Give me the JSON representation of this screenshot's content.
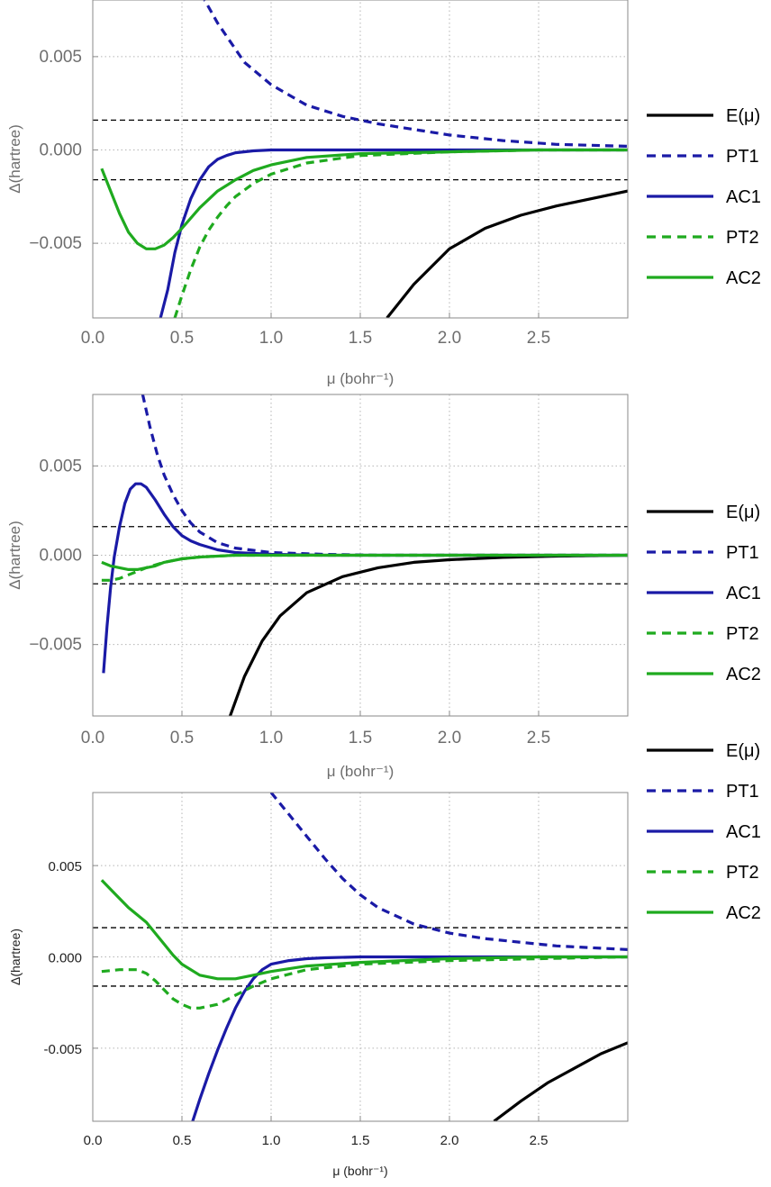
{
  "colors": {
    "E": "#000000",
    "PT1": "#1a1aa6",
    "AC1": "#1a1aa6",
    "PT2": "#1faa1f",
    "AC2": "#1faa1f",
    "threshold": "#000000",
    "grid": "#b5b5b5",
    "frame": "#8a8a8a"
  },
  "chart_data": [
    {
      "type": "line",
      "xlabel": "μ (bohr⁻¹)",
      "ylabel": "Δ(hartree)",
      "xlim": [
        0,
        3.0
      ],
      "ylim": [
        -0.009,
        0.009
      ],
      "xticks": [
        "0.0",
        "0.5",
        "1.0",
        "1.5",
        "2.0",
        "2.5"
      ],
      "yticks": [
        "0.005",
        "0.000",
        "−0.005"
      ],
      "grid": true,
      "legend_position": "right",
      "thresholds": [
        0.0016,
        -0.0016
      ],
      "series": [
        {
          "name": "E(μ)",
          "style": "solid",
          "color": "E",
          "x": [
            1.65,
            1.8,
            2.0,
            2.2,
            2.4,
            2.6,
            2.8,
            3.0
          ],
          "y": [
            -0.009,
            -0.0072,
            -0.0053,
            -0.0042,
            -0.0035,
            -0.003,
            -0.0026,
            -0.0022
          ]
        },
        {
          "name": "PT1",
          "style": "dashed",
          "color": "PT1",
          "x": [
            0.57,
            0.7,
            0.85,
            1.0,
            1.2,
            1.4,
            1.6,
            1.8,
            2.0,
            2.3,
            2.6,
            3.0
          ],
          "y": [
            0.009,
            0.0068,
            0.0047,
            0.0035,
            0.0024,
            0.0018,
            0.0014,
            0.0011,
            0.0008,
            0.0005,
            0.0003,
            0.0002
          ]
        },
        {
          "name": "AC1",
          "style": "solid",
          "color": "AC1",
          "x": [
            0.38,
            0.42,
            0.46,
            0.5,
            0.55,
            0.6,
            0.65,
            0.7,
            0.75,
            0.8,
            0.9,
            1.0,
            1.2,
            1.5,
            2.0,
            3.0
          ],
          "y": [
            -0.009,
            -0.0075,
            -0.0055,
            -0.004,
            -0.0026,
            -0.0016,
            -0.0009,
            -0.0005,
            -0.0003,
            -0.00015,
            -5e-05,
            0.0,
            0.0,
            0.0,
            0.0,
            0.0
          ]
        },
        {
          "name": "PT2",
          "style": "dashed",
          "color": "PT2",
          "x": [
            0.46,
            0.5,
            0.55,
            0.6,
            0.65,
            0.7,
            0.75,
            0.8,
            0.9,
            1.0,
            1.2,
            1.5,
            2.0,
            2.5,
            3.0
          ],
          "y": [
            -0.009,
            -0.0078,
            -0.0064,
            -0.0052,
            -0.0043,
            -0.0036,
            -0.003,
            -0.0025,
            -0.0018,
            -0.0013,
            -0.0007,
            -0.0003,
            -0.0001,
            0.0,
            0.0
          ]
        },
        {
          "name": "AC2",
          "style": "solid",
          "color": "AC2",
          "x": [
            0.05,
            0.1,
            0.15,
            0.2,
            0.25,
            0.3,
            0.35,
            0.4,
            0.45,
            0.5,
            0.6,
            0.7,
            0.8,
            0.9,
            1.0,
            1.2,
            1.5,
            2.0,
            2.5,
            3.0
          ],
          "y": [
            -0.001,
            -0.0022,
            -0.0034,
            -0.0044,
            -0.005,
            -0.0053,
            -0.0053,
            -0.0051,
            -0.0047,
            -0.0042,
            -0.0031,
            -0.0022,
            -0.0016,
            -0.0011,
            -0.0008,
            -0.0004,
            -0.0002,
            -0.0001,
            0.0,
            0.0
          ]
        }
      ]
    },
    {
      "type": "line",
      "xlabel": "μ (bohr⁻¹)",
      "ylabel": "Δ(hartree)",
      "xlim": [
        0,
        3.0
      ],
      "ylim": [
        -0.009,
        0.009
      ],
      "xticks": [
        "0.0",
        "0.5",
        "1.0",
        "1.5",
        "2.0",
        "2.5"
      ],
      "yticks": [
        "0.005",
        "0.000",
        "−0.005"
      ],
      "grid": true,
      "legend_position": "right",
      "thresholds": [
        0.0016,
        -0.0016
      ],
      "series": [
        {
          "name": "E(μ)",
          "style": "solid",
          "color": "E",
          "x": [
            0.77,
            0.85,
            0.95,
            1.05,
            1.2,
            1.4,
            1.6,
            1.8,
            2.0,
            2.3,
            2.6,
            3.0
          ],
          "y": [
            -0.009,
            -0.0068,
            -0.0048,
            -0.0034,
            -0.0021,
            -0.0012,
            -0.0007,
            -0.0004,
            -0.00025,
            -0.00012,
            -5e-05,
            0.0
          ]
        },
        {
          "name": "PT1",
          "style": "dashed",
          "color": "PT1",
          "x": [
            0.28,
            0.32,
            0.36,
            0.4,
            0.45,
            0.5,
            0.55,
            0.6,
            0.7,
            0.8,
            1.0,
            1.3,
            1.6,
            2.0,
            3.0
          ],
          "y": [
            0.009,
            0.0072,
            0.0057,
            0.0045,
            0.0034,
            0.0025,
            0.0018,
            0.0013,
            0.0007,
            0.0004,
            0.00015,
            5e-05,
            0.0,
            0.0,
            0.0
          ]
        },
        {
          "name": "AC1",
          "style": "solid",
          "color": "AC1",
          "x": [
            0.06,
            0.08,
            0.1,
            0.12,
            0.15,
            0.18,
            0.21,
            0.24,
            0.27,
            0.3,
            0.35,
            0.4,
            0.45,
            0.5,
            0.55,
            0.6,
            0.7,
            0.8,
            1.0,
            1.3,
            1.6,
            2.0,
            3.0
          ],
          "y": [
            -0.0066,
            -0.004,
            -0.0018,
            -0.0001,
            0.0016,
            0.0029,
            0.0037,
            0.004,
            0.004,
            0.0038,
            0.0031,
            0.0023,
            0.0016,
            0.0011,
            0.0008,
            0.0006,
            0.0003,
            0.00015,
            5e-05,
            0.0,
            0.0,
            0.0,
            0.0
          ]
        },
        {
          "name": "PT2",
          "style": "dashed",
          "color": "PT2",
          "x": [
            0.05,
            0.1,
            0.15,
            0.2,
            0.25,
            0.3,
            0.4,
            0.5,
            0.6,
            0.7,
            0.8,
            1.0,
            1.5,
            2.0,
            3.0
          ],
          "y": [
            -0.0014,
            -0.0014,
            -0.0013,
            -0.0011,
            -0.0009,
            -0.0007,
            -0.0004,
            -0.0002,
            -0.0001,
            -5e-05,
            0.0,
            0.0,
            0.0,
            0.0,
            0.0
          ]
        },
        {
          "name": "AC2",
          "style": "solid",
          "color": "AC2",
          "x": [
            0.05,
            0.1,
            0.15,
            0.2,
            0.25,
            0.3,
            0.35,
            0.4,
            0.5,
            0.6,
            0.7,
            0.8,
            1.0,
            1.5,
            2.0,
            3.0
          ],
          "y": [
            -0.0004,
            -0.0006,
            -0.0007,
            -0.0008,
            -0.0008,
            -0.0007,
            -0.0006,
            -0.0004,
            -0.0002,
            -0.0001,
            -5e-05,
            0.0,
            0.0,
            0.0,
            0.0,
            0.0
          ]
        }
      ]
    },
    {
      "type": "line",
      "xlabel": "μ (bohr⁻¹)",
      "ylabel": "Δ(hartree)",
      "xlim": [
        0,
        3.0
      ],
      "ylim": [
        -0.009,
        0.009
      ],
      "xticks": [
        "0.0",
        "0.5",
        "1.0",
        "1.5",
        "2.0",
        "2.5"
      ],
      "yticks": [
        "0.005",
        "0.000",
        "-0.005"
      ],
      "grid": true,
      "legend_position": "right",
      "thresholds": [
        0.0016,
        -0.0016
      ],
      "series": [
        {
          "name": "E(μ)",
          "style": "solid",
          "color": "E",
          "x": [
            2.25,
            2.4,
            2.55,
            2.7,
            2.85,
            3.0
          ],
          "y": [
            -0.009,
            -0.0079,
            -0.0069,
            -0.0061,
            -0.0053,
            -0.0047
          ]
        },
        {
          "name": "PT1",
          "style": "dashed",
          "color": "PT1",
          "x": [
            1.0,
            1.1,
            1.2,
            1.3,
            1.4,
            1.5,
            1.6,
            1.8,
            2.0,
            2.2,
            2.4,
            2.6,
            2.8,
            3.0
          ],
          "y": [
            0.009,
            0.0078,
            0.0066,
            0.0054,
            0.0043,
            0.0034,
            0.0027,
            0.0018,
            0.0013,
            0.001,
            0.0008,
            0.0006,
            0.0005,
            0.0004
          ]
        },
        {
          "name": "AC1",
          "style": "solid",
          "color": "AC1",
          "x": [
            0.56,
            0.6,
            0.65,
            0.7,
            0.75,
            0.8,
            0.85,
            0.9,
            0.95,
            1.0,
            1.1,
            1.2,
            1.3,
            1.5,
            1.8,
            2.0,
            2.5,
            3.0
          ],
          "y": [
            -0.009,
            -0.0078,
            -0.0064,
            -0.0051,
            -0.0039,
            -0.0028,
            -0.0019,
            -0.0012,
            -0.0007,
            -0.0004,
            -0.0002,
            -0.0001,
            -5e-05,
            0.0,
            0.0,
            0.0,
            0.0,
            0.0
          ]
        },
        {
          "name": "PT2",
          "style": "dashed",
          "color": "PT2",
          "x": [
            0.05,
            0.15,
            0.25,
            0.3,
            0.35,
            0.4,
            0.45,
            0.5,
            0.55,
            0.6,
            0.7,
            0.8,
            0.9,
            1.0,
            1.2,
            1.5,
            2.0,
            2.5,
            3.0
          ],
          "y": [
            -0.0008,
            -0.0007,
            -0.0007,
            -0.0009,
            -0.0013,
            -0.0018,
            -0.0023,
            -0.0026,
            -0.0028,
            -0.0028,
            -0.0026,
            -0.0021,
            -0.0016,
            -0.0012,
            -0.0007,
            -0.0004,
            -0.0002,
            -0.0001,
            0.0
          ]
        },
        {
          "name": "AC2",
          "style": "solid",
          "color": "AC2",
          "x": [
            0.05,
            0.1,
            0.15,
            0.2,
            0.25,
            0.3,
            0.35,
            0.4,
            0.45,
            0.5,
            0.6,
            0.7,
            0.8,
            0.9,
            1.0,
            1.2,
            1.5,
            2.0,
            2.5,
            3.0
          ],
          "y": [
            0.0042,
            0.0037,
            0.0032,
            0.0027,
            0.0023,
            0.0019,
            0.0013,
            0.0007,
            0.0001,
            -0.0004,
            -0.001,
            -0.0012,
            -0.0012,
            -0.001,
            -0.0008,
            -0.0005,
            -0.0003,
            -0.0001,
            0.0,
            0.0
          ]
        }
      ]
    }
  ]
}
